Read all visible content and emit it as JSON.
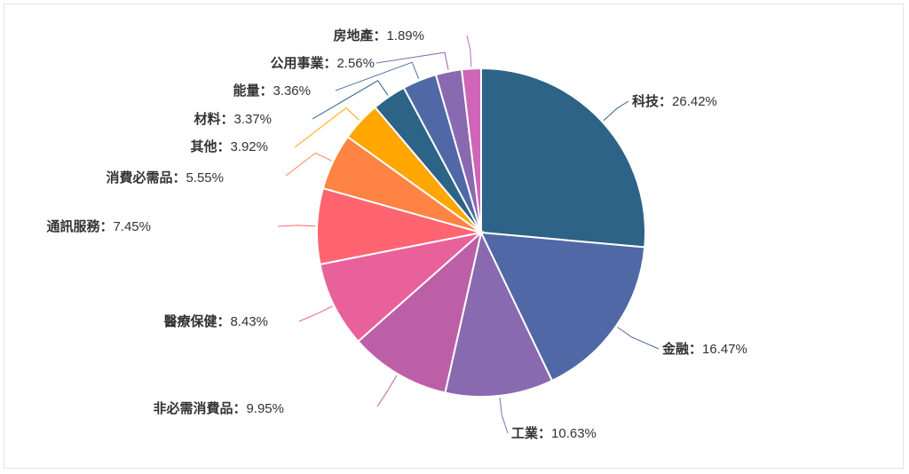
{
  "chart_data": {
    "type": "pie",
    "title": "",
    "separator": "：",
    "slices": [
      {
        "label": "科技",
        "value": 26.42,
        "display": "26.42%",
        "color": "#2c6386"
      },
      {
        "label": "金融",
        "value": 16.47,
        "display": "16.47%",
        "color": "#5068a6"
      },
      {
        "label": "工業",
        "value": 10.63,
        "display": "10.63%",
        "color": "#8969b0"
      },
      {
        "label": "非必需消費品",
        "value": 9.95,
        "display": "9.95%",
        "color": "#bd5fa6"
      },
      {
        "label": "醫療保健",
        "value": 8.43,
        "display": "8.43%",
        "color": "#e9619a"
      },
      {
        "label": "通訊服務",
        "value": 7.45,
        "display": "7.45%",
        "color": "#ff6571"
      },
      {
        "label": "消費必需品",
        "value": 5.55,
        "display": "5.55%",
        "color": "#ff8343"
      },
      {
        "label": "其他",
        "value": 3.92,
        "display": "3.92%",
        "color": "#ffa600"
      },
      {
        "label": "材料",
        "value": 3.37,
        "display": "3.37%",
        "color": "#2c6386"
      },
      {
        "label": "能量",
        "value": 3.36,
        "display": "3.36%",
        "color": "#5068a6"
      },
      {
        "label": "公用事業",
        "value": 2.56,
        "display": "2.56%",
        "color": "#8969b0"
      },
      {
        "label": "房地產",
        "value": 1.89,
        "display": "1.89%",
        "color": "#d065b8"
      }
    ]
  }
}
